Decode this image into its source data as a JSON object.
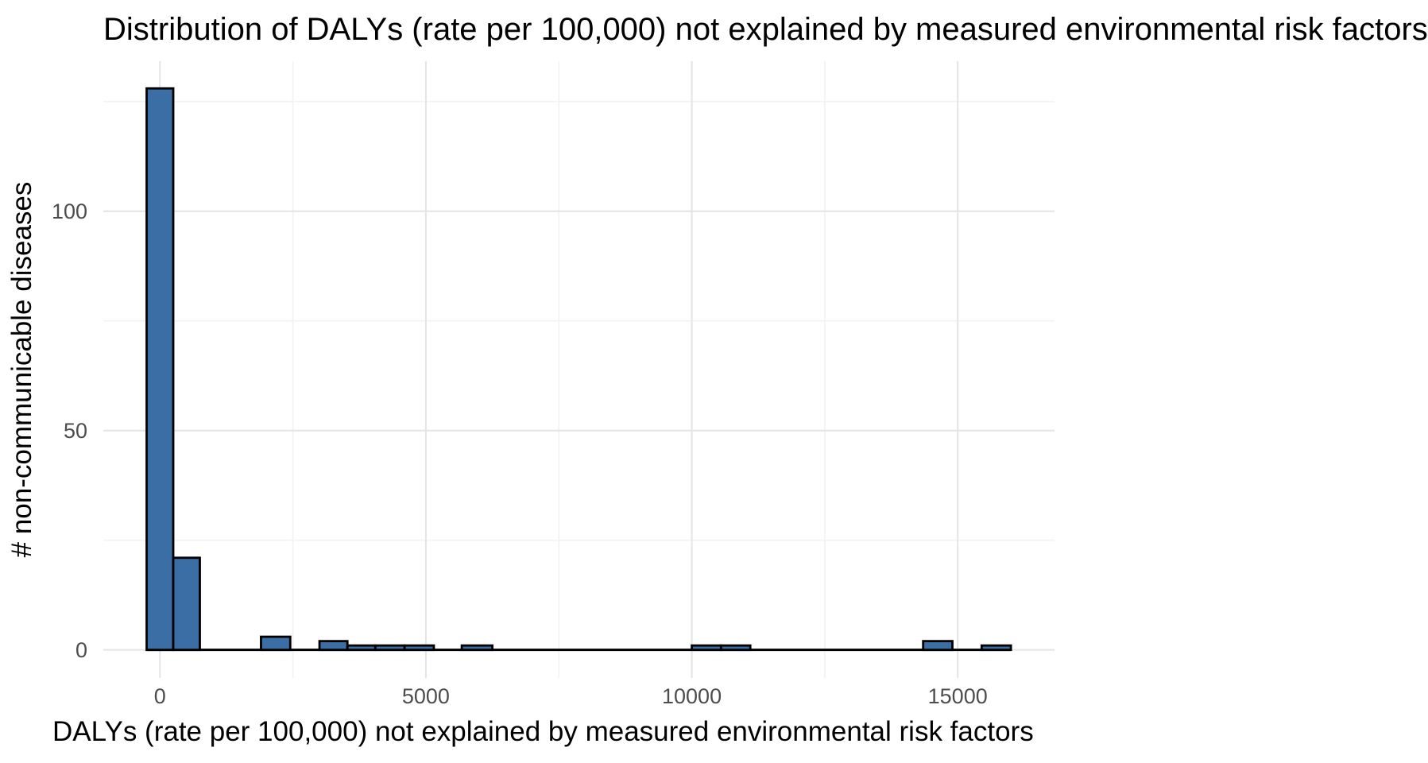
{
  "chart_data": {
    "type": "bar",
    "subtype": "histogram",
    "title": "Distribution of DALYs (rate per 100,000) not explained by measured environmental risk factors",
    "xlabel": "DALYs (rate per 100,000) not explained by measured environmental risk factors",
    "ylabel": "# non-communicable diseases",
    "x_tick_values": [
      0,
      5000,
      10000,
      15000
    ],
    "x_tick_labels": [
      "0",
      "5000",
      "10000",
      "15000"
    ],
    "x_minor_ticks": [
      2500,
      7500,
      12500
    ],
    "y_tick_values": [
      0,
      50,
      100
    ],
    "y_tick_labels": [
      "0",
      "50",
      "100"
    ],
    "y_minor_ticks": [
      25,
      75,
      125
    ],
    "xlim": [
      -1065,
      16820
    ],
    "ylim": [
      -6.4,
      134.2
    ],
    "grid": "major and minor gridlines, no axis lines, no tick marks",
    "legend_position": "none",
    "bins": [
      {
        "x0": -250,
        "x1": 250,
        "count": 128
      },
      {
        "x0": 250,
        "x1": 750,
        "count": 21
      },
      {
        "x0": 1900,
        "x1": 2450,
        "count": 3
      },
      {
        "x0": 3000,
        "x1": 3525,
        "count": 2
      },
      {
        "x0": 3525,
        "x1": 4050,
        "count": 1
      },
      {
        "x0": 4050,
        "x1": 4600,
        "count": 1
      },
      {
        "x0": 4600,
        "x1": 5150,
        "count": 1
      },
      {
        "x0": 5675,
        "x1": 6250,
        "count": 1
      },
      {
        "x0": 10000,
        "x1": 10550,
        "count": 1
      },
      {
        "x0": 10550,
        "x1": 11100,
        "count": 1
      },
      {
        "x0": 14350,
        "x1": 14900,
        "count": 2
      },
      {
        "x0": 15450,
        "x1": 16000,
        "count": 1
      }
    ],
    "zero_line_range": [
      -250,
      16000
    ],
    "colors": {
      "bar_fill": "#3A6EA5",
      "bar_stroke": "#000000",
      "grid_major": "#E4E4E4",
      "grid_minor": "#F2F2F2",
      "tick_label": "#4D4D4D",
      "text": "#000000",
      "background": "#FFFFFF"
    }
  }
}
